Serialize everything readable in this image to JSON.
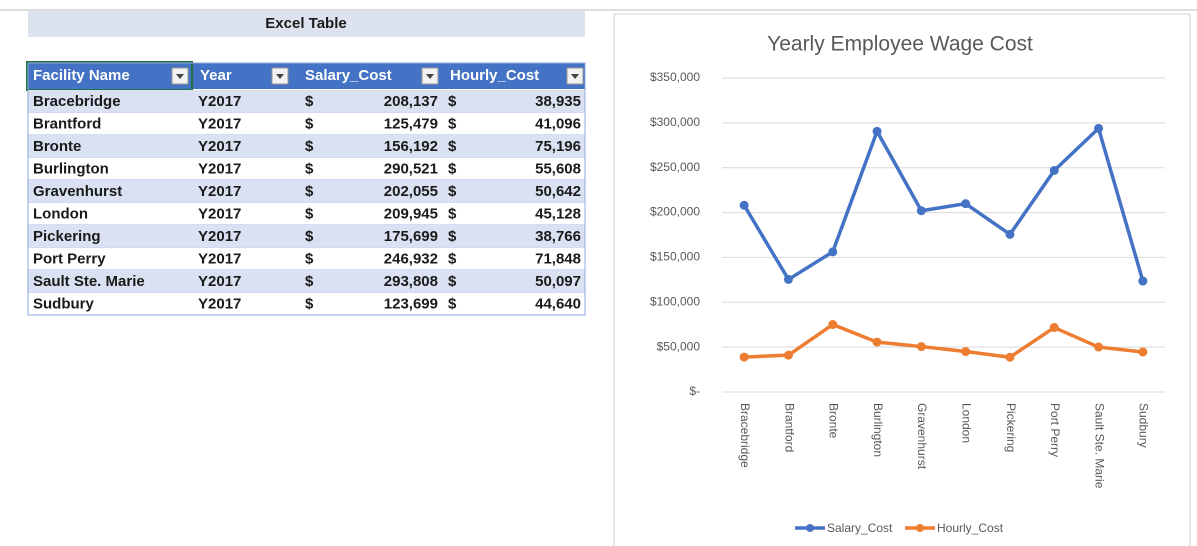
{
  "table": {
    "title": "Excel Table",
    "headers": [
      "Facility Name",
      "Year",
      "Salary_Cost",
      "Hourly_Cost"
    ],
    "rows": [
      [
        "Bracebridge",
        "Y2017",
        "$",
        "208,137",
        "$",
        "38,935"
      ],
      [
        "Brantford",
        "Y2017",
        "$",
        "125,479",
        "$",
        "41,096"
      ],
      [
        "Bronte",
        "Y2017",
        "$",
        "156,192",
        "$",
        "75,196"
      ],
      [
        "Burlington",
        "Y2017",
        "$",
        "290,521",
        "$",
        "55,608"
      ],
      [
        "Gravenhurst",
        "Y2017",
        "$",
        "202,055",
        "$",
        "50,642"
      ],
      [
        "London",
        "Y2017",
        "$",
        "209,945",
        "$",
        "45,128"
      ],
      [
        "Pickering",
        "Y2017",
        "$",
        "175,699",
        "$",
        "38,766"
      ],
      [
        "Port Perry",
        "Y2017",
        "$",
        "246,932",
        "$",
        "71,848"
      ],
      [
        "Sault Ste. Marie",
        "Y2017",
        "$",
        "293,808",
        "$",
        "50,097"
      ],
      [
        "Sudbury",
        "Y2017",
        "$",
        "123,699",
        "$",
        "44,640"
      ]
    ]
  },
  "chart_data": {
    "type": "line",
    "title": "Yearly Employee Wage Cost",
    "categories": [
      "Bracebridge",
      "Brantford",
      "Bronte",
      "Burlington",
      "Gravenhurst",
      "London",
      "Pickering",
      "Port Perry",
      "Sault Ste. Marie",
      "Sudbury"
    ],
    "series": [
      {
        "name": "Salary_Cost",
        "color": "#4472c4",
        "values": [
          208137,
          125479,
          156192,
          290521,
          202055,
          209945,
          175699,
          246932,
          293808,
          123699
        ]
      },
      {
        "name": "Hourly_Cost",
        "color": "#ed7d31",
        "values": [
          38935,
          41096,
          75196,
          55608,
          50642,
          45128,
          38766,
          71848,
          50097,
          44640
        ]
      }
    ],
    "ylim": [
      0,
      350000
    ],
    "yticks": [
      {
        "value": 0,
        "label": "$-"
      },
      {
        "value": 50000,
        "label": "$50,000"
      },
      {
        "value": 100000,
        "label": "$100,000"
      },
      {
        "value": 150000,
        "label": "$150,000"
      },
      {
        "value": 200000,
        "label": "$200,000"
      },
      {
        "value": 250000,
        "label": "$250,000"
      },
      {
        "value": 300000,
        "label": "$300,000"
      },
      {
        "value": 350000,
        "label": "$350,000"
      }
    ],
    "grid": true,
    "legend": "bottom"
  }
}
